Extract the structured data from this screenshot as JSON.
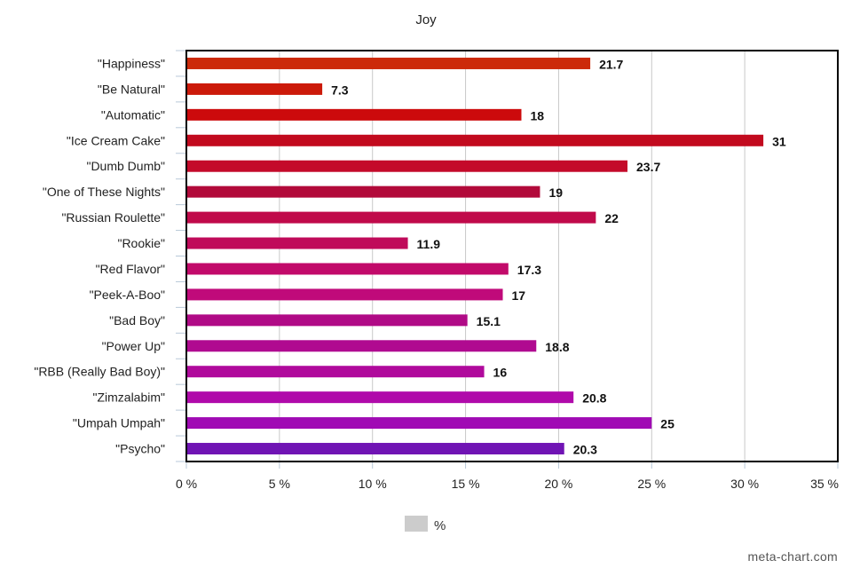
{
  "chart_data": {
    "type": "bar",
    "orientation": "horizontal",
    "title": "Joy",
    "categories": [
      "\"Happiness\"",
      "\"Be Natural\"",
      "\"Automatic\"",
      "\"Ice Cream Cake\"",
      "\"Dumb Dumb\"",
      "\"One of These Nights\"",
      "\"Russian Roulette\"",
      "\"Rookie\"",
      "\"Red Flavor\"",
      "\"Peek-A-Boo\"",
      "\"Bad Boy\"",
      "\"Power Up\"",
      "\"RBB (Really Bad Boy)\"",
      "\"Zimzalabim\"",
      "\"Umpah Umpah\"",
      "\"Psycho\""
    ],
    "series": [
      {
        "name": "%",
        "values": [
          21.7,
          7.3,
          18,
          31,
          23.7,
          19,
          22,
          11.9,
          17.3,
          17,
          15.1,
          18.8,
          16,
          20.8,
          25,
          20.3
        ],
        "value_labels": [
          "21.7",
          "7.3",
          "18",
          "31",
          "23.7",
          "19",
          "22",
          "11.9",
          "17.3",
          "17",
          "15.1",
          "18.8",
          "16",
          "20.8",
          "25",
          "20.3"
        ],
        "colors": [
          "#cc2a0a",
          "#cc1a0a",
          "#cc0a0c",
          "#c20a1e",
          "#c40a2a",
          "#b20a3a",
          "#c00a4a",
          "#c00a5a",
          "#c20a6a",
          "#c00a7a",
          "#b00a86",
          "#b00a90",
          "#b00a9c",
          "#b00aaa",
          "#a00ab4",
          "#7014b4"
        ]
      }
    ],
    "xlim": [
      0,
      35
    ],
    "x_ticks": [
      0,
      5,
      10,
      15,
      20,
      25,
      30,
      35
    ],
    "x_tick_labels": [
      "0 %",
      "5 %",
      "10 %",
      "15 %",
      "20 %",
      "25 %",
      "30 %",
      "35 %"
    ],
    "grid": true,
    "legend_position": "bottom-center",
    "legend_color": "#cccccc"
  },
  "credit": "meta-chart.com"
}
